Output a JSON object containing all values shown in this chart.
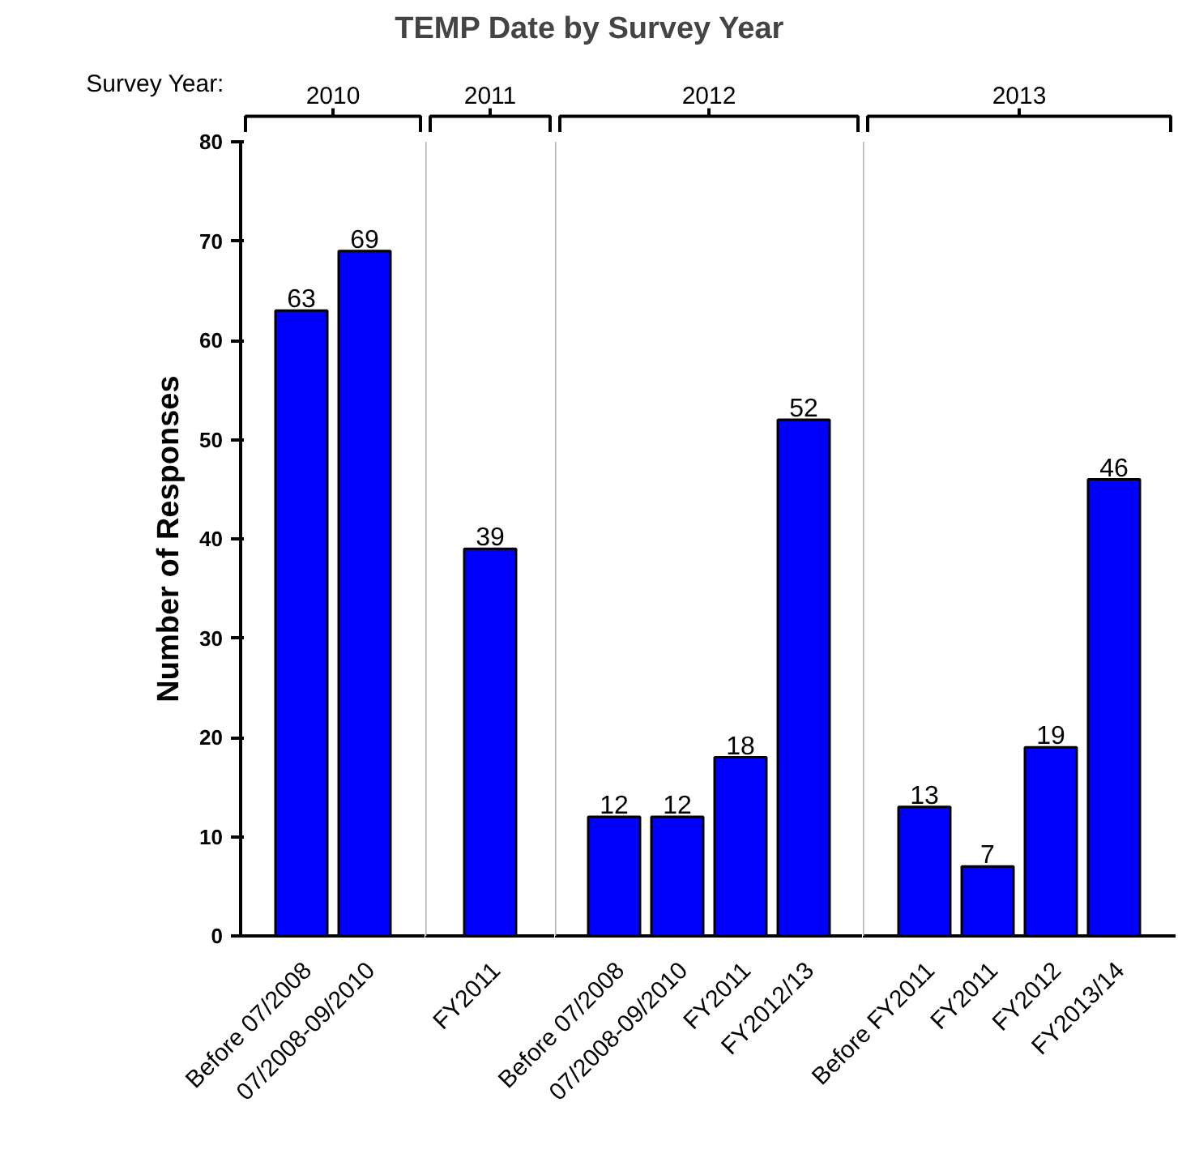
{
  "chart_data": [
    {
      "type": "bar",
      "subtitle": "2010",
      "annotations": [
        "Survey Year:"
      ],
      "ylabel": "Number of Responses",
      "categories": [
        "Before 07/2008",
        "07/2008-09/2010"
      ],
      "values": [
        63,
        69
      ],
      "color": "#0000ff",
      "ylim": [
        0,
        80
      ],
      "yticks": [
        0,
        10,
        20,
        30,
        40,
        50,
        60,
        70,
        80
      ],
      "data_labels": true
    },
    {
      "type": "bar",
      "subtitle": "2011",
      "categories": [
        "FY2011"
      ],
      "values": [
        39
      ],
      "color": "#0000ff",
      "ylim": [
        0,
        80
      ],
      "tick_labels": "x",
      "data_labels": true
    },
    {
      "type": "bar",
      "title": "TEMP Date by Survey Year",
      "subtitle": "2012",
      "categories": [
        "Before 07/2008",
        "07/2008-09/2010",
        "FY2011",
        "FY2012/13"
      ],
      "values": [
        12,
        12,
        18,
        52
      ],
      "color": "#0000ff",
      "ylim": [
        0,
        80
      ],
      "tick_labels": "x",
      "data_labels": true
    },
    {
      "type": "bar",
      "subtitle": "2013",
      "categories": [
        "Before FY2011",
        "FY2011",
        "FY2012",
        "FY2013/14"
      ],
      "values": [
        13,
        7,
        19,
        46
      ],
      "color": "#0000ff",
      "ylim": [
        0,
        80
      ],
      "tick_labels": "x",
      "data_labels": true
    }
  ]
}
